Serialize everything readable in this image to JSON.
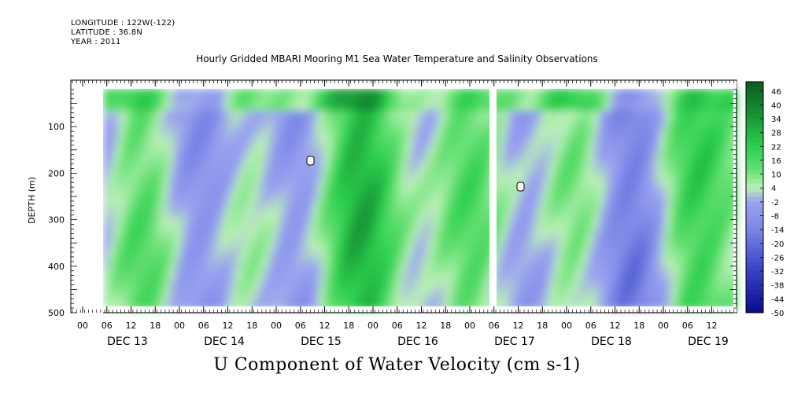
{
  "header": {
    "longitude": "LONGITUDE : 122W(-122)",
    "latitude": "LATITUDE : 36.8N",
    "year": "YEAR : 2011",
    "title": "Hourly Gridded MBARI Mooring M1 Sea Water Temperature and Salinity Observations"
  },
  "chart_data": {
    "type": "heatmap",
    "title": "Hourly Gridded MBARI Mooring M1 Sea Water Temperature and Salinity Observations",
    "bottom_label": "U Component of Water Velocity (cm s-1)",
    "ylabel": "DEPTH (m)",
    "y_range": [
      500,
      0
    ],
    "y_inverted": true,
    "y_ticks": [
      "100",
      "200",
      "300",
      "400",
      "500"
    ],
    "y_tick_values": [
      100,
      200,
      300,
      400,
      500
    ],
    "x_hour_labels": [
      "00",
      "06",
      "12",
      "18",
      "00",
      "06",
      "12",
      "18",
      "00",
      "06",
      "12",
      "18",
      "00",
      "06",
      "12",
      "18",
      "00",
      "06",
      "12",
      "18",
      "00",
      "06",
      "12",
      "18",
      "00",
      "06",
      "12"
    ],
    "x_date_labels": [
      "DEC 13",
      "DEC 14",
      "DEC 15",
      "DEC 16",
      "DEC 17",
      "DEC 18",
      "DEC 19"
    ],
    "colorbar_labels": [
      "46",
      "40",
      "34",
      "28",
      "22",
      "16",
      "10",
      "4",
      "-2",
      "-8",
      "-14",
      "-20",
      "-26",
      "-32",
      "-38",
      "-44",
      "-50"
    ],
    "colorbar_range": [
      -50,
      50
    ],
    "data_gap": "DEC 17 06"
  },
  "colors": {
    "positive_strong": "#0b5a1f",
    "positive": "#2ccf4e",
    "near_zero": "#b9f0b6",
    "negative": "#9aa3ef",
    "negative_strong": "#0a0a8c"
  }
}
